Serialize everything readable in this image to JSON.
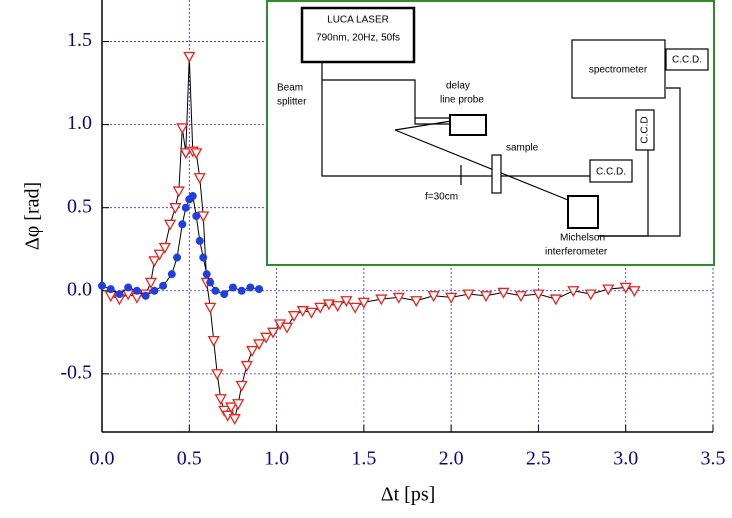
{
  "chart_data": {
    "type": "scatter-line",
    "xlabel": "Δt [ps]",
    "ylabel": "Δφ [rad]",
    "xlim": [
      0,
      3.5
    ],
    "ylim": [
      -0.85,
      1.75
    ],
    "xticks": [
      {
        "value": 0,
        "label": "0.0"
      },
      0.5,
      {
        "value": 1,
        "label": "1.0"
      },
      1.5,
      {
        "value": 2,
        "label": "2.0"
      },
      2.5,
      {
        "value": 3,
        "label": "3.0"
      },
      3.5
    ],
    "yticks": [
      -0.5,
      {
        "value": 0,
        "label": "0.0"
      },
      0.5,
      {
        "value": 1,
        "label": "1.0"
      },
      1.5
    ],
    "grid": true,
    "grid_color": "#2a2ad8",
    "axis_label_color": "#0a0a80",
    "series": [
      {
        "color": "#e8241c",
        "marker": "triangle-down",
        "x": [
          0.05,
          0.1,
          0.15,
          0.2,
          0.25,
          0.28,
          0.3,
          0.33,
          0.36,
          0.39,
          0.42,
          0.44,
          0.46,
          0.48,
          0.5,
          0.52,
          0.54,
          0.56,
          0.58,
          0.6,
          0.62,
          0.64,
          0.66,
          0.68,
          0.7,
          0.72,
          0.74,
          0.76,
          0.78,
          0.8,
          0.83,
          0.86,
          0.9,
          0.94,
          0.98,
          1.02,
          1.06,
          1.1,
          1.15,
          1.2,
          1.25,
          1.3,
          1.35,
          1.4,
          1.45,
          1.5,
          1.6,
          1.7,
          1.8,
          1.9,
          2.0,
          2.1,
          2.2,
          2.3,
          2.4,
          2.5,
          2.6,
          2.7,
          2.8,
          2.9,
          3.0,
          3.05
        ],
        "values": [
          -0.03,
          -0.05,
          -0.02,
          -0.04,
          -0.02,
          0.05,
          0.18,
          0.22,
          0.26,
          0.4,
          0.5,
          0.6,
          0.98,
          0.83,
          1.41,
          0.84,
          0.83,
          0.68,
          0.45,
          0.05,
          -0.1,
          -0.3,
          -0.5,
          -0.65,
          -0.72,
          -0.75,
          -0.7,
          -0.77,
          -0.68,
          -0.57,
          -0.45,
          -0.36,
          -0.32,
          -0.28,
          -0.25,
          -0.2,
          -0.22,
          -0.15,
          -0.12,
          -0.13,
          -0.1,
          -0.08,
          -0.09,
          -0.06,
          -0.1,
          -0.07,
          -0.05,
          -0.04,
          -0.06,
          -0.03,
          -0.04,
          -0.02,
          -0.03,
          -0.01,
          -0.03,
          -0.02,
          -0.05,
          0.0,
          -0.02,
          0.01,
          0.02,
          0.0
        ]
      },
      {
        "color": "#1f3fe0",
        "marker": "circle",
        "x": [
          0.0,
          0.05,
          0.1,
          0.15,
          0.2,
          0.25,
          0.3,
          0.35,
          0.4,
          0.43,
          0.46,
          0.48,
          0.5,
          0.52,
          0.54,
          0.56,
          0.58,
          0.6,
          0.62,
          0.65,
          0.7,
          0.75,
          0.8,
          0.85,
          0.9
        ],
        "values": [
          0.03,
          0.01,
          -0.02,
          0.02,
          0.0,
          -0.03,
          0.0,
          0.03,
          0.1,
          0.2,
          0.4,
          0.5,
          0.55,
          0.57,
          0.45,
          0.3,
          0.2,
          0.1,
          0.05,
          0.0,
          -0.02,
          0.02,
          0.0,
          0.02,
          0.01
        ]
      }
    ]
  },
  "inset_diagram": {
    "laser_name": "LUCA LASER",
    "laser_spec": "790nm, 20Hz, 50fs",
    "beam_splitter": [
      "Beam",
      "splitter"
    ],
    "delay": [
      "delay",
      "line probe"
    ],
    "sample": "sample",
    "lens": "f=30cm",
    "ccd_probe": "C.C.D.",
    "spectrometer": "spectrometer",
    "ccd_spectrometer": "C.C.D.",
    "ccd_vertical": "C.C.D",
    "michelson": [
      "Michelson",
      "interferometer"
    ]
  }
}
